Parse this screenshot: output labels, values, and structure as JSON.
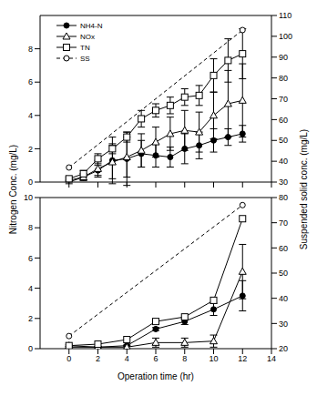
{
  "chart_data": [
    {
      "type": "line",
      "ylabel": "Nitrogen Conc. (mg/L)",
      "y2label": "Suspended solid conc. (mg/L)",
      "xlim": [
        -2,
        14
      ],
      "xticks": [
        0,
        2,
        4,
        6,
        8,
        10,
        12,
        14
      ],
      "ylim": [
        0,
        10
      ],
      "yticks": [
        0,
        2,
        4,
        6,
        8
      ],
      "y2lim": [
        30,
        110
      ],
      "y2ticks": [
        30,
        40,
        50,
        60,
        70,
        80,
        90,
        100,
        110
      ],
      "legend": "upper left",
      "tick_labels": "y",
      "series": [
        {
          "name": "NH4-N",
          "color": "#000000",
          "marker": "filled_circle",
          "line_style": "solid",
          "x": [
            0,
            1,
            2,
            3,
            4,
            5,
            6,
            7,
            8,
            9,
            10,
            11,
            12
          ],
          "values": [
            0.0,
            0.3,
            0.7,
            1.3,
            1.4,
            1.7,
            1.6,
            1.5,
            2.0,
            2.2,
            2.5,
            2.7,
            2.9
          ],
          "errors": [
            0.1,
            0.2,
            0.3,
            1.4,
            1.6,
            0.8,
            0.7,
            0.6,
            0.9,
            0.8,
            0.7,
            0.5,
            0.5
          ]
        },
        {
          "name": "NOx",
          "color": "#000000",
          "marker": "open_triangle",
          "line_style": "solid",
          "x": [
            0,
            1,
            2,
            3,
            4,
            5,
            6,
            7,
            8,
            9,
            10,
            11,
            12
          ],
          "values": [
            0.1,
            0.3,
            0.8,
            1.2,
            1.5,
            1.9,
            2.4,
            2.9,
            3.1,
            3.0,
            4.0,
            4.7,
            4.9
          ],
          "errors": [
            0.1,
            0.2,
            0.5,
            1.0,
            1.2,
            1.0,
            0.9,
            1.0,
            1.2,
            1.2,
            1.4,
            2.0,
            2.2
          ]
        },
        {
          "name": "TN",
          "color": "#000000",
          "marker": "open_square",
          "line_style": "solid",
          "x": [
            0,
            1,
            2,
            3,
            4,
            5,
            6,
            7,
            8,
            9,
            10,
            11,
            12
          ],
          "values": [
            0.2,
            0.5,
            1.4,
            2.0,
            2.7,
            3.8,
            4.3,
            4.6,
            5.1,
            5.2,
            6.4,
            7.3,
            7.7
          ],
          "errors": [
            0.1,
            0.2,
            0.3,
            0.3,
            0.3,
            0.5,
            0.4,
            0.5,
            0.5,
            0.6,
            1.0,
            1.3,
            1.5
          ]
        },
        {
          "name": "SS",
          "color": "#000000",
          "marker": "open_circle",
          "line_style": "dashed",
          "axis": "y2",
          "x": [
            0,
            12
          ],
          "values": [
            37,
            103
          ]
        }
      ]
    },
    {
      "type": "line",
      "xlabel": "Operation time (hr)",
      "xlim": [
        -2,
        14
      ],
      "xticks": [
        0,
        2,
        4,
        6,
        8,
        10,
        12,
        14
      ],
      "ylim": [
        0,
        10
      ],
      "yticks": [
        0,
        2,
        4,
        6,
        8,
        10
      ],
      "y2lim": [
        20,
        80
      ],
      "y2ticks": [
        20,
        30,
        40,
        50,
        60,
        70,
        80
      ],
      "series": [
        {
          "name": "NH4-N",
          "color": "#000000",
          "marker": "filled_circle",
          "line_style": "solid",
          "x": [
            0,
            2,
            4,
            6,
            8,
            10,
            12
          ],
          "values": [
            0.1,
            0.1,
            0.2,
            1.3,
            1.8,
            2.6,
            3.5
          ],
          "errors": [
            0.05,
            0.05,
            0.05,
            0.1,
            0.2,
            0.4,
            1.0
          ]
        },
        {
          "name": "NOx",
          "color": "#000000",
          "marker": "open_triangle",
          "line_style": "solid",
          "x": [
            0,
            2,
            4,
            6,
            8,
            10,
            12
          ],
          "values": [
            0.2,
            0.1,
            0.1,
            0.4,
            0.4,
            0.5,
            5.1
          ],
          "errors": [
            0.05,
            0.05,
            0.1,
            0.3,
            0.3,
            0.4,
            1.8
          ]
        },
        {
          "name": "TN",
          "color": "#000000",
          "marker": "open_square",
          "line_style": "solid",
          "x": [
            0,
            2,
            4,
            6,
            8,
            10,
            12
          ],
          "values": [
            0.2,
            0.3,
            0.6,
            1.8,
            2.1,
            3.2,
            8.6
          ]
        },
        {
          "name": "SS",
          "color": "#000000",
          "marker": "open_circle",
          "line_style": "dashed",
          "axis": "y2",
          "x": [
            0,
            12
          ],
          "values": [
            25,
            77
          ]
        }
      ]
    }
  ]
}
